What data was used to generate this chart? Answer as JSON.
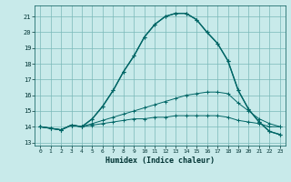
{
  "xlabel": "Humidex (Indice chaleur)",
  "bg_color": "#c8eaea",
  "grid_color": "#7ab8b8",
  "line_color": "#006666",
  "xlim": [
    -0.5,
    23.5
  ],
  "ylim": [
    12.8,
    21.7
  ],
  "yticks": [
    13,
    14,
    15,
    16,
    17,
    18,
    19,
    20,
    21
  ],
  "xticks": [
    0,
    1,
    2,
    3,
    4,
    5,
    6,
    7,
    8,
    9,
    10,
    11,
    12,
    13,
    14,
    15,
    16,
    17,
    18,
    19,
    20,
    21,
    22,
    23
  ],
  "curve_max": [
    14.0,
    13.9,
    13.8,
    14.1,
    14.0,
    14.5,
    15.3,
    16.3,
    17.5,
    18.5,
    19.7,
    20.5,
    21.0,
    21.2,
    21.2,
    20.8,
    20.0,
    19.3,
    18.2,
    16.3,
    15.1,
    14.3,
    13.7,
    13.5
  ],
  "curve_mean": [
    14.0,
    13.9,
    13.8,
    14.1,
    14.0,
    14.2,
    14.4,
    14.6,
    14.8,
    15.0,
    15.2,
    15.4,
    15.6,
    15.8,
    16.0,
    16.1,
    16.2,
    16.2,
    16.1,
    15.5,
    15.0,
    14.5,
    14.2,
    14.0
  ],
  "curve_min": [
    14.0,
    13.9,
    13.8,
    14.1,
    14.0,
    14.1,
    14.2,
    14.3,
    14.4,
    14.5,
    14.5,
    14.6,
    14.6,
    14.7,
    14.7,
    14.7,
    14.7,
    14.7,
    14.6,
    14.4,
    14.3,
    14.2,
    14.0,
    14.0
  ],
  "curve_actual": [
    14.0,
    13.9,
    13.8,
    14.1,
    14.0,
    14.5,
    15.3,
    16.3,
    17.5,
    18.5,
    19.7,
    20.5,
    21.0,
    21.2,
    21.2,
    20.8,
    20.0,
    19.3,
    18.2,
    16.3,
    15.1,
    14.3,
    13.7,
    13.5
  ]
}
